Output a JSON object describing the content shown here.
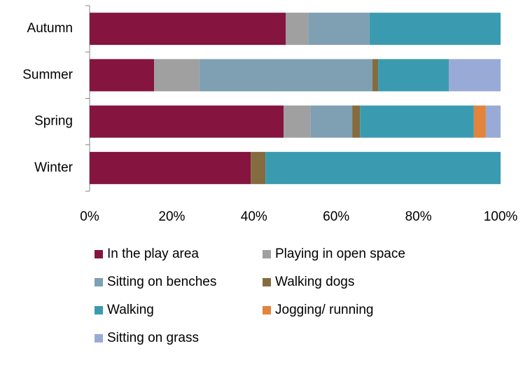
{
  "chart_data": {
    "type": "stacked_barh",
    "categories": [
      "Autumn",
      "Summer",
      "Spring",
      "Winter"
    ],
    "series": [
      {
        "name": "In the play area",
        "color": "#85143f",
        "values": [
          47.7,
          15.7,
          47.2,
          39.2
        ]
      },
      {
        "name": "Playing in open space",
        "color": "#a0a0a0",
        "values": [
          5.5,
          11.0,
          6.5,
          0
        ]
      },
      {
        "name": "Sitting on benches",
        "color": "#7f9fb3",
        "values": [
          14.9,
          42.1,
          10.2,
          0
        ]
      },
      {
        "name": "Walking dogs",
        "color": "#846c40",
        "values": [
          0,
          1.4,
          1.9,
          3.6
        ]
      },
      {
        "name": "Walking",
        "color": "#3a9bb0",
        "values": [
          31.9,
          17.2,
          27.7,
          57.2
        ]
      },
      {
        "name": "Jogging/ running",
        "color": "#e2843b",
        "values": [
          0,
          0,
          2.9,
          0
        ]
      },
      {
        "name": "Sitting on grass",
        "color": "#99aad6",
        "values": [
          0,
          12.6,
          3.6,
          0
        ]
      }
    ],
    "xlim": [
      0,
      100
    ],
    "xticks": [
      {
        "value": 0,
        "label": "0%"
      },
      {
        "value": 20,
        "label": "20%"
      },
      {
        "value": 40,
        "label": "40%"
      },
      {
        "value": 60,
        "label": "60%"
      },
      {
        "value": 80,
        "label": "80%"
      },
      {
        "value": 100,
        "label": "100%"
      }
    ],
    "legend": "bottom"
  }
}
